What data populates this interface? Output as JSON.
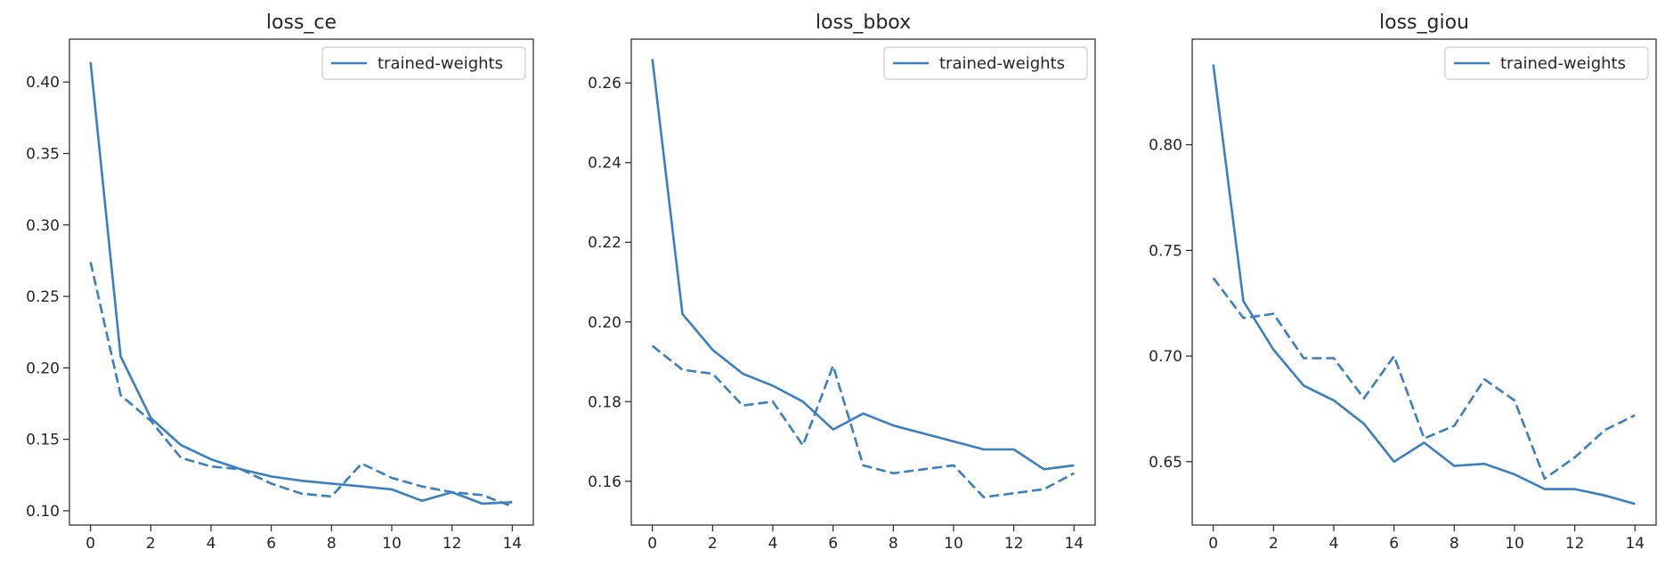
{
  "chart_data": [
    {
      "type": "line",
      "title": "loss_ce",
      "xlabel": "",
      "ylabel": "",
      "xlim": [
        -0.7,
        14.7
      ],
      "ylim": [
        0.09,
        0.43
      ],
      "xticks": [
        0,
        2,
        4,
        6,
        8,
        10,
        12,
        14
      ],
      "yticks": [
        0.1,
        0.15,
        0.2,
        0.25,
        0.3,
        0.35,
        0.4
      ],
      "ytick_labels": [
        "0.10",
        "0.15",
        "0.20",
        "0.25",
        "0.30",
        "0.35",
        "0.40"
      ],
      "legend_position": "top-right",
      "x": [
        0,
        1,
        2,
        3,
        4,
        5,
        6,
        7,
        8,
        9,
        10,
        11,
        12,
        13,
        14
      ],
      "series": [
        {
          "name": "trained-weights",
          "style": "solid",
          "color": "#3a7fbf",
          "values": [
            0.414,
            0.208,
            0.165,
            0.146,
            0.136,
            0.129,
            0.124,
            0.121,
            0.119,
            0.117,
            0.115,
            0.107,
            0.113,
            0.105,
            0.106
          ]
        },
        {
          "style": "dashed",
          "color": "#3a7fbf",
          "values": [
            0.274,
            0.181,
            0.163,
            0.137,
            0.131,
            0.129,
            0.119,
            0.112,
            0.11,
            0.133,
            0.123,
            0.117,
            0.113,
            0.111,
            0.103
          ]
        }
      ]
    },
    {
      "type": "line",
      "title": "loss_bbox",
      "xlabel": "",
      "ylabel": "",
      "xlim": [
        -0.7,
        14.7
      ],
      "ylim": [
        0.149,
        0.271
      ],
      "xticks": [
        0,
        2,
        4,
        6,
        8,
        10,
        12,
        14
      ],
      "yticks": [
        0.16,
        0.18,
        0.2,
        0.22,
        0.24,
        0.26
      ],
      "ytick_labels": [
        "0.16",
        "0.18",
        "0.20",
        "0.22",
        "0.24",
        "0.26"
      ],
      "legend_position": "top-right",
      "x": [
        0,
        1,
        2,
        3,
        4,
        5,
        6,
        7,
        8,
        9,
        10,
        11,
        12,
        13,
        14
      ],
      "series": [
        {
          "name": "trained-weights",
          "style": "solid",
          "color": "#3a7fbf",
          "values": [
            0.266,
            0.202,
            0.193,
            0.187,
            0.184,
            0.18,
            0.173,
            0.177,
            0.174,
            0.172,
            0.17,
            0.168,
            0.168,
            0.163,
            0.164
          ]
        },
        {
          "style": "dashed",
          "color": "#3a7fbf",
          "values": [
            0.194,
            0.188,
            0.187,
            0.179,
            0.18,
            0.169,
            0.189,
            0.164,
            0.162,
            0.163,
            0.164,
            0.156,
            0.157,
            0.158,
            0.162
          ]
        }
      ]
    },
    {
      "type": "line",
      "title": "loss_giou",
      "xlabel": "",
      "ylabel": "",
      "xlim": [
        -0.7,
        14.7
      ],
      "ylim": [
        0.62,
        0.85
      ],
      "xticks": [
        0,
        2,
        4,
        6,
        8,
        10,
        12,
        14
      ],
      "yticks": [
        0.65,
        0.7,
        0.75,
        0.8
      ],
      "ytick_labels": [
        "0.65",
        "0.70",
        "0.75",
        "0.80"
      ],
      "legend_position": "top-right",
      "x": [
        0,
        1,
        2,
        3,
        4,
        5,
        6,
        7,
        8,
        9,
        10,
        11,
        12,
        13,
        14
      ],
      "series": [
        {
          "name": "trained-weights",
          "style": "solid",
          "color": "#3a7fbf",
          "values": [
            0.838,
            0.726,
            0.703,
            0.686,
            0.679,
            0.668,
            0.65,
            0.659,
            0.648,
            0.649,
            0.644,
            0.637,
            0.637,
            0.634,
            0.63
          ]
        },
        {
          "style": "dashed",
          "color": "#3a7fbf",
          "values": [
            0.737,
            0.718,
            0.72,
            0.699,
            0.699,
            0.68,
            0.7,
            0.661,
            0.667,
            0.689,
            0.679,
            0.642,
            0.652,
            0.665,
            0.672
          ]
        }
      ]
    }
  ]
}
